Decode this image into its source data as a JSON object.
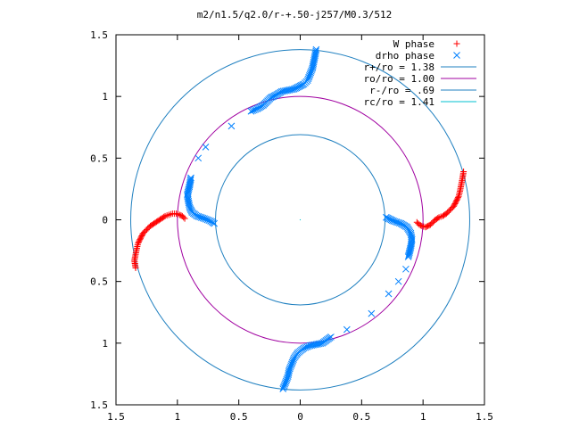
{
  "chart_data": {
    "type": "scatter",
    "title": "m2/n1.5/q2.0/r-+.50-j257/M0.3/512",
    "xlim": [
      -1.5,
      1.5
    ],
    "ylim": [
      -1.5,
      1.5
    ],
    "xticks": [
      "1.5",
      "1",
      "0.5",
      "0",
      "0.5",
      "1",
      "1.5"
    ],
    "yticks": [
      "1.5",
      "1",
      "0.5",
      "0",
      "0.5",
      "1",
      "1.5"
    ],
    "xtick_values": [
      -1.5,
      -1,
      -0.5,
      0,
      0.5,
      1,
      1.5
    ],
    "ytick_values": [
      1.5,
      1,
      0.5,
      0,
      -0.5,
      -1,
      -1.5
    ],
    "legend_position": "top-right",
    "legend": [
      {
        "label": "W phase",
        "kind": "plus",
        "color": "#ff0000"
      },
      {
        "label": "drho phase",
        "kind": "cross",
        "color": "#0080ff"
      },
      {
        "label": "r+/ro = 1.38",
        "kind": "line",
        "color": "#2080c0"
      },
      {
        "label": "ro/ro = 1.00",
        "kind": "line",
        "color": "#a000a0"
      },
      {
        "label": "r-/ro = .69",
        "kind": "line",
        "color": "#2080c0"
      },
      {
        "label": "rc/ro = 1.41",
        "kind": "line",
        "color": "#00c0d0"
      }
    ],
    "circles": [
      {
        "name": "r+/ro",
        "r": 1.38,
        "color": "#2080c0"
      },
      {
        "name": "ro/ro",
        "r": 1.0,
        "color": "#a000a0"
      },
      {
        "name": "r-/ro",
        "r": 0.69,
        "color": "#2080c0"
      }
    ],
    "series": [
      {
        "name": "W phase",
        "marker": "plus",
        "color": "#ff0000",
        "points": [
          [
            1.33,
            0.39
          ],
          [
            1.32,
            0.33
          ],
          [
            1.31,
            0.28
          ],
          [
            1.3,
            0.23
          ],
          [
            1.29,
            0.19
          ],
          [
            1.27,
            0.15
          ],
          [
            1.25,
            0.11
          ],
          [
            1.22,
            0.08
          ],
          [
            1.19,
            0.05
          ],
          [
            1.16,
            0.03
          ],
          [
            1.13,
            0.02
          ],
          [
            1.1,
            0.0
          ],
          [
            1.08,
            -0.02
          ],
          [
            1.06,
            -0.04
          ],
          [
            1.04,
            -0.05
          ],
          [
            1.02,
            -0.06
          ],
          [
            0.99,
            -0.05
          ],
          [
            0.97,
            -0.04
          ],
          [
            0.95,
            -0.02
          ],
          [
            -1.34,
            -0.39
          ],
          [
            -1.35,
            -0.33
          ],
          [
            -1.34,
            -0.28
          ],
          [
            -1.33,
            -0.23
          ],
          [
            -1.32,
            -0.19
          ],
          [
            -1.3,
            -0.15
          ],
          [
            -1.28,
            -0.11
          ],
          [
            -1.25,
            -0.08
          ],
          [
            -1.22,
            -0.05
          ],
          [
            -1.19,
            -0.03
          ],
          [
            -1.16,
            -0.01
          ],
          [
            -1.13,
            0.01
          ],
          [
            -1.1,
            0.03
          ],
          [
            -1.07,
            0.04
          ],
          [
            -1.04,
            0.05
          ],
          [
            -1.01,
            0.05
          ],
          [
            -0.98,
            0.04
          ],
          [
            -0.96,
            0.03
          ],
          [
            -0.94,
            0.01
          ]
        ]
      },
      {
        "name": "drho phase",
        "marker": "cross",
        "color": "#0080ff",
        "points": [
          [
            0.13,
            1.38
          ],
          [
            0.12,
            1.33
          ],
          [
            0.11,
            1.28
          ],
          [
            0.1,
            1.23
          ],
          [
            0.08,
            1.18
          ],
          [
            0.06,
            1.13
          ],
          [
            0.03,
            1.1
          ],
          [
            -0.01,
            1.08
          ],
          [
            -0.05,
            1.06
          ],
          [
            -0.1,
            1.05
          ],
          [
            -0.15,
            1.04
          ],
          [
            -0.2,
            1.01
          ],
          [
            -0.24,
            0.99
          ],
          [
            -0.3,
            0.93
          ],
          [
            -0.35,
            0.9
          ],
          [
            -0.4,
            0.88
          ],
          [
            -0.56,
            0.76
          ],
          [
            -0.77,
            0.59
          ],
          [
            -0.83,
            0.5
          ],
          [
            -0.89,
            0.34
          ],
          [
            -0.9,
            0.28
          ],
          [
            -0.92,
            0.2
          ],
          [
            -0.91,
            0.15
          ],
          [
            -0.9,
            0.1
          ],
          [
            -0.88,
            0.06
          ],
          [
            -0.84,
            0.03
          ],
          [
            -0.78,
            0.01
          ],
          [
            -0.73,
            -0.01
          ],
          [
            -0.7,
            -0.03
          ],
          [
            -0.14,
            -1.37
          ],
          [
            -0.12,
            -1.32
          ],
          [
            -0.1,
            -1.27
          ],
          [
            -0.09,
            -1.22
          ],
          [
            -0.07,
            -1.17
          ],
          [
            -0.05,
            -1.12
          ],
          [
            -0.02,
            -1.08
          ],
          [
            0.03,
            -1.04
          ],
          [
            0.08,
            -1.02
          ],
          [
            0.13,
            -1.01
          ],
          [
            0.18,
            -1.0
          ],
          [
            0.25,
            -0.95
          ],
          [
            0.38,
            -0.89
          ],
          [
            0.58,
            -0.76
          ],
          [
            0.72,
            -0.6
          ],
          [
            0.8,
            -0.5
          ],
          [
            0.86,
            -0.4
          ],
          [
            0.88,
            -0.3
          ],
          [
            0.9,
            -0.22
          ],
          [
            0.91,
            -0.16
          ],
          [
            0.9,
            -0.11
          ],
          [
            0.87,
            -0.06
          ],
          [
            0.82,
            -0.03
          ],
          [
            0.76,
            -0.01
          ],
          [
            0.7,
            0.02
          ]
        ]
      }
    ]
  }
}
